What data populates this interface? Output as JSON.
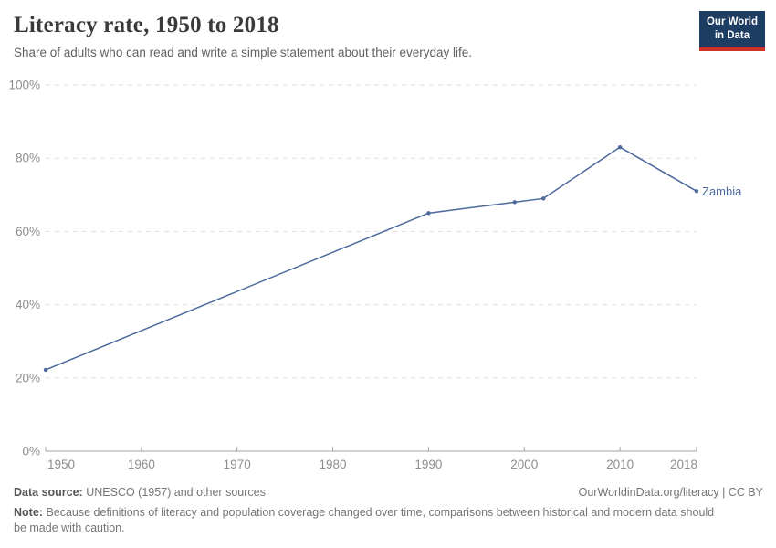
{
  "header": {
    "title": "Literacy rate, 1950 to 2018",
    "subtitle": "Share of adults who can read and write a simple statement about their everyday life."
  },
  "logo": {
    "line1": "Our World",
    "line2": "in Data",
    "bg_color": "#1d3d63",
    "accent_color": "#cf3127"
  },
  "chart_data": {
    "type": "line",
    "title": "Literacy rate, 1950 to 2018",
    "xlabel": "",
    "ylabel": "",
    "xlim": [
      1950,
      2018
    ],
    "ylim": [
      0,
      100
    ],
    "xticks": [
      1950,
      1960,
      1970,
      1980,
      1990,
      2000,
      2010,
      2018
    ],
    "yticks": [
      0,
      20,
      40,
      60,
      80,
      100
    ],
    "ytick_suffix": "%",
    "grid": "horizontal-dashed",
    "legend_position": "end-of-line",
    "axis_color": "#a3a3a3",
    "gridline_color": "#dedede",
    "series": [
      {
        "name": "Zambia",
        "color": "#4C6A9C",
        "points": [
          {
            "x": 1950,
            "y": 22.2
          },
          {
            "x": 1990,
            "y": 65
          },
          {
            "x": 1999,
            "y": 68
          },
          {
            "x": 2002,
            "y": 69
          },
          {
            "x": 2010,
            "y": 83
          },
          {
            "x": 2018,
            "y": 71
          }
        ]
      }
    ]
  },
  "footer": {
    "source_label": "Data source:",
    "source_text": "UNESCO (1957) and other sources",
    "attribution": "OurWorldinData.org/literacy | CC BY",
    "note_label": "Note:",
    "note_text": "Because definitions of literacy and population coverage changed over time, comparisons between historical and modern data should be made with caution."
  }
}
